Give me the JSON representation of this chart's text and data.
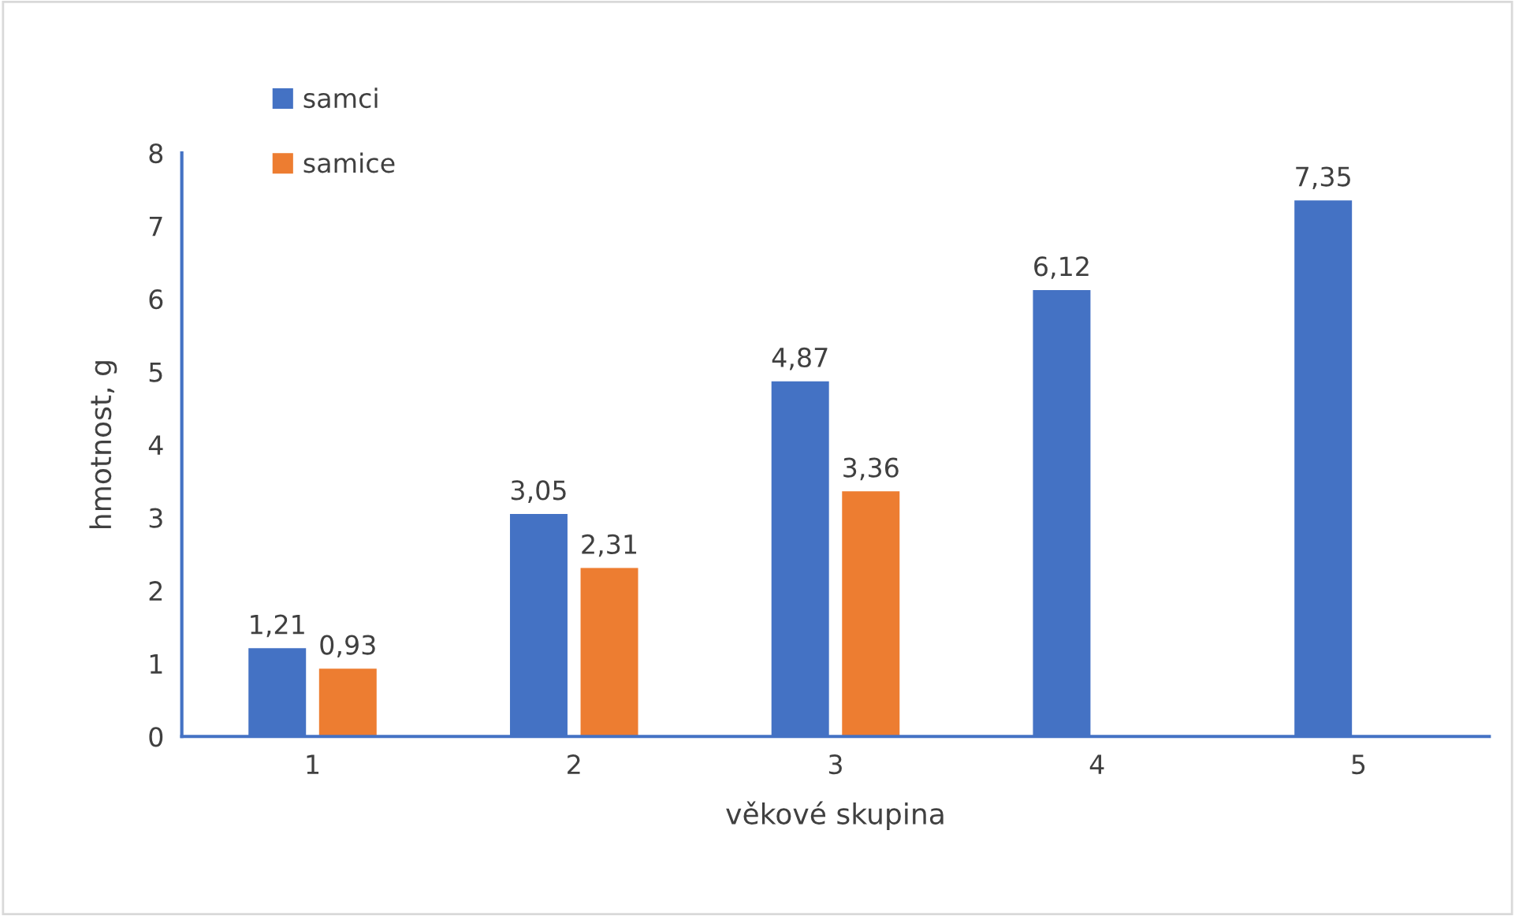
{
  "chart_data": {
    "type": "bar",
    "xlabel": "věkové skupina",
    "ylabel": "hmotnost, g",
    "categories": [
      "1",
      "2",
      "3",
      "4",
      "5"
    ],
    "series": [
      {
        "name": "samci",
        "color": "#4472c4",
        "values": [
          1.21,
          3.05,
          4.87,
          6.12,
          7.35
        ],
        "value_labels": [
          "1,21",
          "3,05",
          "4,87",
          "6,12",
          "7,35"
        ]
      },
      {
        "name": "samice",
        "color": "#ed7d31",
        "values": [
          0.93,
          2.31,
          3.36,
          null,
          null
        ],
        "value_labels": [
          "0,93",
          "2,31",
          "3,36",
          null,
          null
        ]
      }
    ],
    "ylim": [
      0,
      8
    ],
    "yticks": [
      0,
      1,
      2,
      3,
      4,
      5,
      6,
      7,
      8
    ],
    "grid": false,
    "legend": "top left"
  }
}
